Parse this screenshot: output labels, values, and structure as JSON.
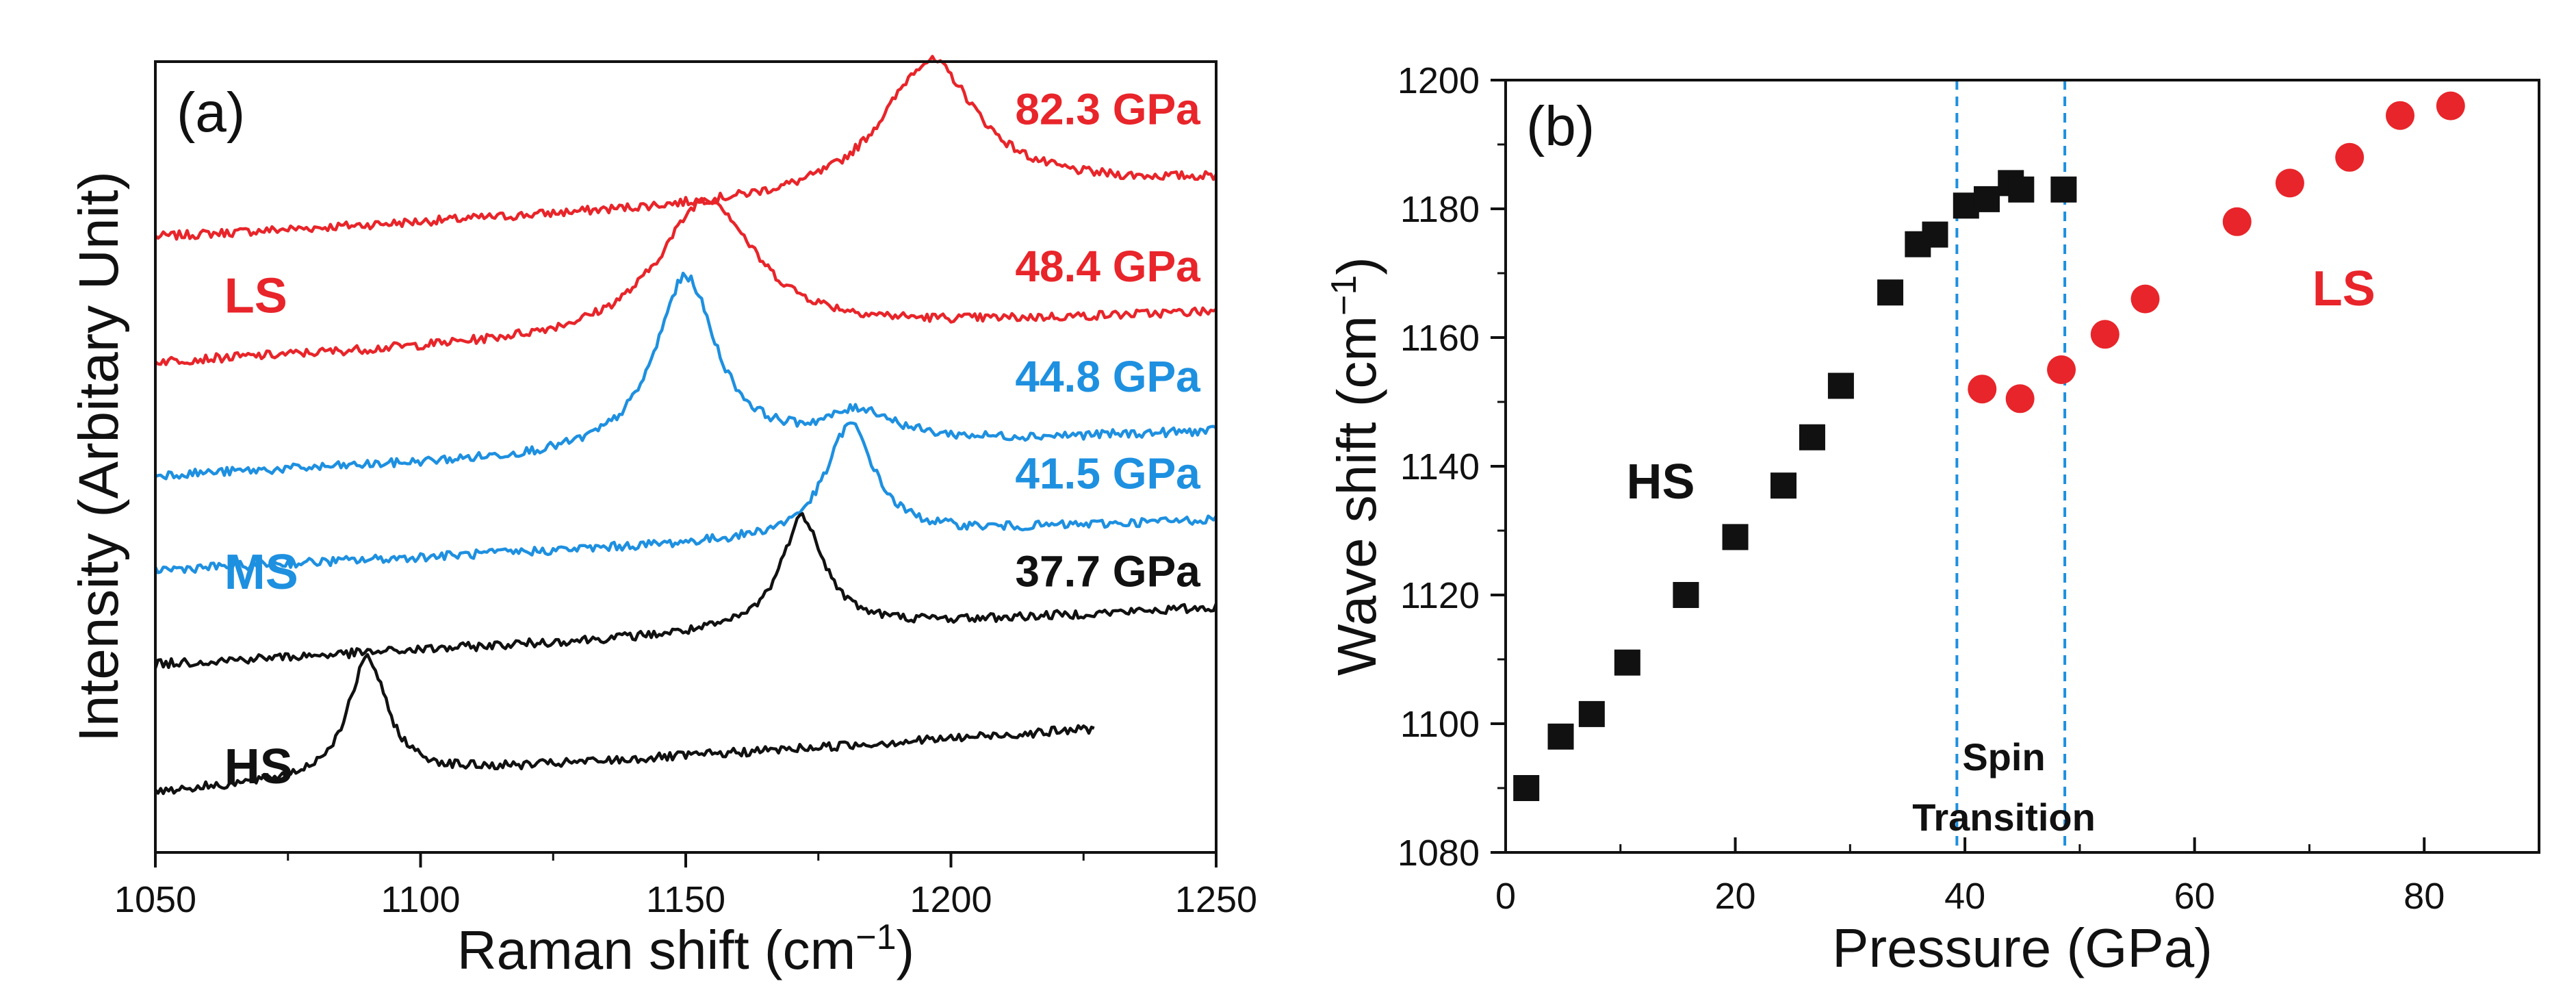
{
  "chart_data": [
    {
      "panel": "(a)",
      "type": "line",
      "xlabel": "Raman shift (cm",
      "xlabel_sup": "−1",
      "xlabel_tail": ")",
      "ylabel": "Intensity (Arbitary Unit)",
      "xlim": [
        1050,
        1250
      ],
      "ylim": [
        0,
        6.3
      ],
      "x_ticks": [
        1050,
        1100,
        1150,
        1200,
        1250
      ],
      "y_ticks_labeled": false,
      "grid": false,
      "colors": {
        "red": "#e8252a",
        "blue": "#1e90e0",
        "black": "#111111"
      },
      "state_labels": [
        {
          "text": "LS",
          "color": "#e8252a",
          "x": 1063,
          "y": 4.3
        },
        {
          "text": "MS",
          "color": "#1e90e0",
          "x": 1063,
          "y": 2.1
        },
        {
          "text": "HS",
          "color": "#111111",
          "x": 1063,
          "y": 0.55
        }
      ],
      "series": [
        {
          "name": "82.3 GPa",
          "color": "#e8252a",
          "x_range": [
            1050,
            1250
          ],
          "baseline_start": 4.9,
          "baseline_end": 5.35,
          "peaks": [
            {
              "center": 1196,
              "height": 1.08,
              "width": 11
            }
          ]
        },
        {
          "name": "48.4 GPa",
          "color": "#e8252a",
          "x_range": [
            1050,
            1250
          ],
          "baseline_start": 3.9,
          "baseline_end": 4.3,
          "peaks": [
            {
              "center": 1154,
              "height": 1.1,
              "width": 11
            }
          ]
        },
        {
          "name": "44.8 GPa",
          "color": "#1e90e0",
          "x_range": [
            1050,
            1250
          ],
          "baseline_start": 3.0,
          "baseline_end": 3.35,
          "peaks": [
            {
              "center": 1150,
              "height": 1.4,
              "width": 7
            },
            {
              "center": 1183,
              "height": 0.25,
              "width": 8
            }
          ]
        },
        {
          "name": "41.5 GPa",
          "color": "#1e90e0",
          "x_range": [
            1050,
            1250
          ],
          "baseline_start": 2.25,
          "baseline_end": 2.65,
          "peaks": [
            {
              "center": 1181,
              "height": 0.9,
              "width": 5.5
            }
          ]
        },
        {
          "name": "37.7 GPa",
          "color": "#111111",
          "x_range": [
            1050,
            1250
          ],
          "baseline_start": 1.5,
          "baseline_end": 1.95,
          "peaks": [
            {
              "center": 1172,
              "height": 0.9,
              "width": 5
            }
          ]
        },
        {
          "name": "",
          "color": "#111111",
          "x_range": [
            1050,
            1227
          ],
          "baseline_start": 0.48,
          "baseline_end": 1.05,
          "peaks": [
            {
              "center": 1090,
              "height": 0.95,
              "width": 4.5
            }
          ]
        }
      ],
      "series_labels": [
        {
          "text": "82.3 GPa",
          "color": "#e8252a",
          "x": 1247,
          "y": 5.8
        },
        {
          "text": "48.4 GPa",
          "color": "#e8252a",
          "x": 1247,
          "y": 4.55
        },
        {
          "text": "44.8 GPa",
          "color": "#1e90e0",
          "x": 1247,
          "y": 3.67
        },
        {
          "text": "41.5 GPa",
          "color": "#1e90e0",
          "x": 1247,
          "y": 2.9
        },
        {
          "text": "37.7 GPa",
          "color": "#111111",
          "x": 1247,
          "y": 2.12
        }
      ]
    },
    {
      "panel": "(b)",
      "type": "scatter",
      "xlabel": "Pressure (GPa)",
      "ylabel": "Wave shift (cm",
      "ylabel_sup": "−1",
      "ylabel_tail": ")",
      "xlim": [
        0,
        90
      ],
      "ylim": [
        1080,
        1200
      ],
      "x_ticks": [
        0,
        20,
        40,
        60,
        80
      ],
      "y_ticks": [
        1080,
        1100,
        1120,
        1140,
        1160,
        1180,
        1200
      ],
      "grid": false,
      "vlines": [
        39.3,
        48.7
      ],
      "vline_color": "#1e90e0",
      "annotation": {
        "line1": "Spin",
        "line2": "Transition"
      },
      "region_labels": [
        {
          "text": "HS",
          "color": "#111111",
          "x": 13.5,
          "y": 1135
        },
        {
          "text": "LS",
          "color": "#e8252a",
          "x": 73,
          "y": 1165
        }
      ],
      "series": [
        {
          "name": "HS",
          "marker": "square",
          "color": "#111111",
          "x": [
            1.8,
            4.8,
            7.5,
            10.6,
            15.7,
            20,
            24.2,
            26.7,
            29.2,
            33.5,
            35.9,
            37.4,
            40.1,
            41.9,
            44.0,
            44.9,
            48.6
          ],
          "y": [
            1090,
            1098,
            1101.5,
            1109.5,
            1120,
            1129,
            1137,
            1144.5,
            1152.5,
            1167,
            1174.5,
            1176,
            1180.5,
            1181.5,
            1184,
            1183,
            1183
          ]
        },
        {
          "name": "LS",
          "marker": "circle",
          "color": "#e8252a",
          "x": [
            41.5,
            44.8,
            48.4,
            52.2,
            55.7,
            63.7,
            68.3,
            73.5,
            77.9,
            82.3
          ],
          "y": [
            1152,
            1150.5,
            1155,
            1160.5,
            1166,
            1178,
            1184,
            1188,
            1194.5,
            1196
          ]
        }
      ]
    }
  ]
}
